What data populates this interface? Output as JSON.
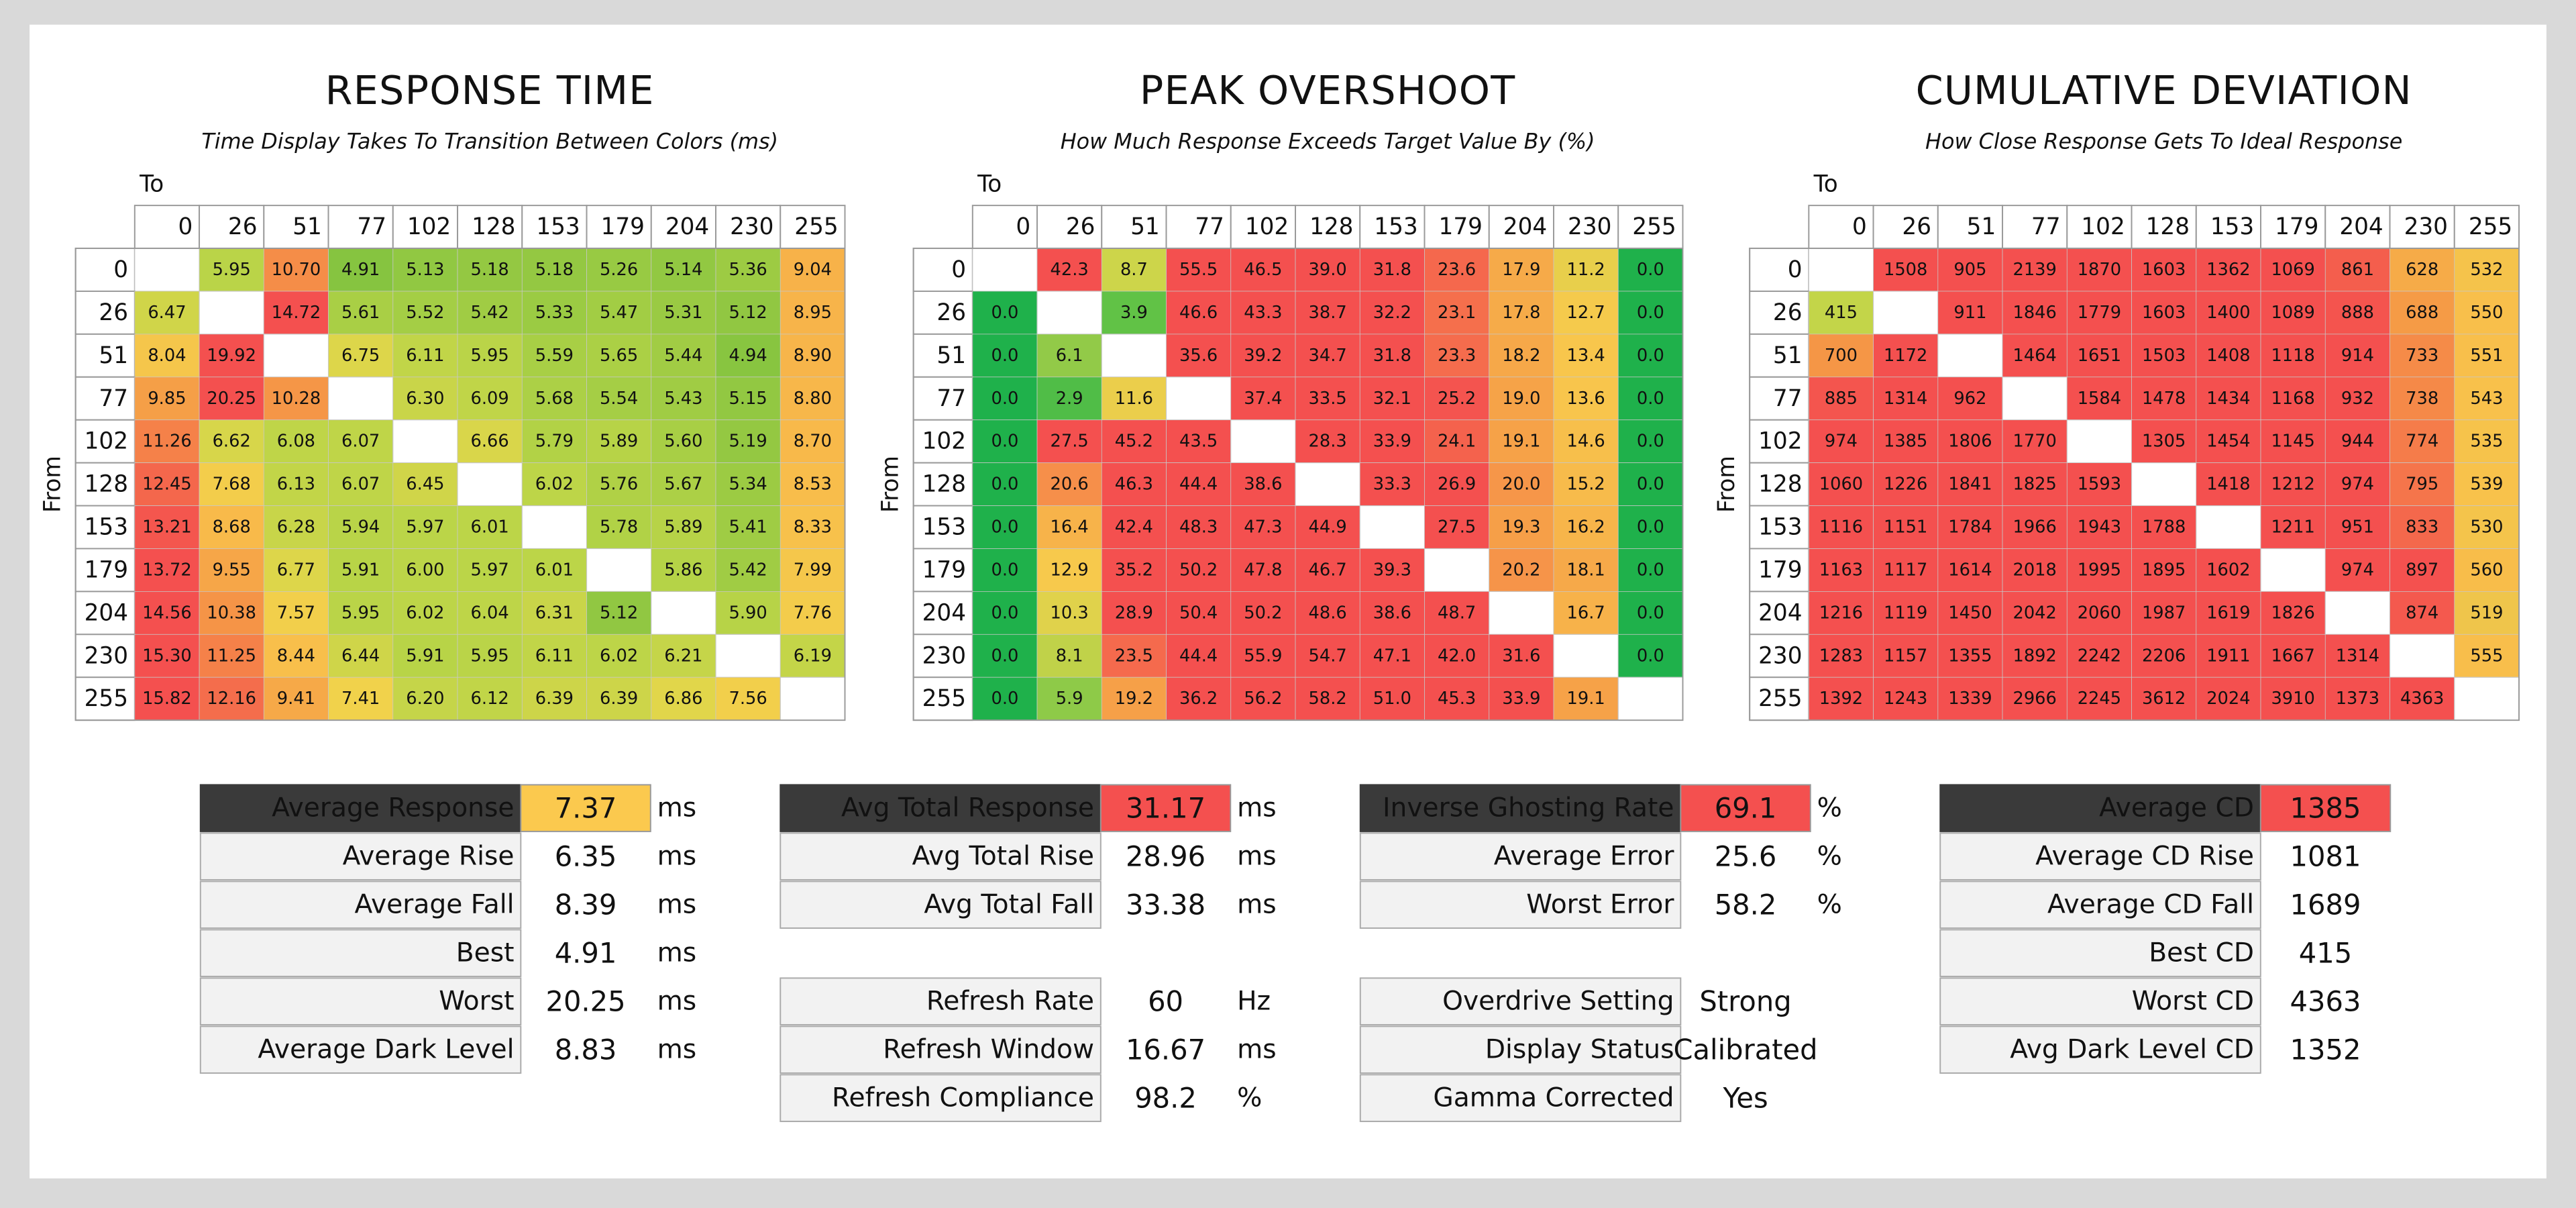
{
  "tables": [
    {
      "title": "RESPONSE TIME",
      "subtitle": "Time Display Takes To Transition Between Colors (ms)",
      "to_label": "To",
      "from_label": "From",
      "levels": [
        "0",
        "26",
        "51",
        "77",
        "102",
        "128",
        "153",
        "179",
        "204",
        "230",
        "255"
      ],
      "rows": [
        [
          null,
          "5.95",
          "10.70",
          "4.91",
          "5.13",
          "5.18",
          "5.18",
          "5.26",
          "5.14",
          "5.36",
          "9.04"
        ],
        [
          "6.47",
          null,
          "14.72",
          "5.61",
          "5.52",
          "5.42",
          "5.33",
          "5.47",
          "5.31",
          "5.12",
          "8.95"
        ],
        [
          "8.04",
          "19.92",
          null,
          "6.75",
          "6.11",
          "5.95",
          "5.59",
          "5.65",
          "5.44",
          "4.94",
          "8.90"
        ],
        [
          "9.85",
          "20.25",
          "10.28",
          null,
          "6.30",
          "6.09",
          "5.68",
          "5.54",
          "5.43",
          "5.15",
          "8.80"
        ],
        [
          "11.26",
          "6.62",
          "6.08",
          "6.07",
          null,
          "6.66",
          "5.79",
          "5.89",
          "5.60",
          "5.19",
          "8.70"
        ],
        [
          "12.45",
          "7.68",
          "6.13",
          "6.07",
          "6.45",
          null,
          "6.02",
          "5.76",
          "5.67",
          "5.34",
          "8.53"
        ],
        [
          "13.21",
          "8.68",
          "6.28",
          "5.94",
          "5.97",
          "6.01",
          null,
          "5.78",
          "5.89",
          "5.41",
          "8.33"
        ],
        [
          "13.72",
          "9.55",
          "6.77",
          "5.91",
          "6.00",
          "5.97",
          "6.01",
          null,
          "5.86",
          "5.42",
          "7.99"
        ],
        [
          "14.56",
          "10.38",
          "7.57",
          "5.95",
          "6.02",
          "6.04",
          "6.31",
          "5.12",
          null,
          "5.90",
          "7.76"
        ],
        [
          "15.30",
          "11.25",
          "8.44",
          "6.44",
          "5.91",
          "5.95",
          "6.11",
          "6.02",
          "6.21",
          null,
          "6.19"
        ],
        [
          "15.82",
          "12.16",
          "9.41",
          "7.41",
          "6.20",
          "6.12",
          "6.39",
          "6.39",
          "6.86",
          "7.56",
          null
        ]
      ]
    },
    {
      "title": "PEAK OVERSHOOT",
      "subtitle": "How Much Response Exceeds Target Value By (%)",
      "to_label": "To",
      "from_label": "From",
      "levels": [
        "0",
        "26",
        "51",
        "77",
        "102",
        "128",
        "153",
        "179",
        "204",
        "230",
        "255"
      ],
      "rows": [
        [
          null,
          "42.3",
          "8.7",
          "55.5",
          "46.5",
          "39.0",
          "31.8",
          "23.6",
          "17.9",
          "11.2",
          "0.0"
        ],
        [
          "0.0",
          null,
          "3.9",
          "46.6",
          "43.3",
          "38.7",
          "32.2",
          "23.1",
          "17.8",
          "12.7",
          "0.0"
        ],
        [
          "0.0",
          "6.1",
          null,
          "35.6",
          "39.2",
          "34.7",
          "31.8",
          "23.3",
          "18.2",
          "13.4",
          "0.0"
        ],
        [
          "0.0",
          "2.9",
          "11.6",
          null,
          "37.4",
          "33.5",
          "32.1",
          "25.2",
          "19.0",
          "13.6",
          "0.0"
        ],
        [
          "0.0",
          "27.5",
          "45.2",
          "43.5",
          null,
          "28.3",
          "33.9",
          "24.1",
          "19.1",
          "14.6",
          "0.0"
        ],
        [
          "0.0",
          "20.6",
          "46.3",
          "44.4",
          "38.6",
          null,
          "33.3",
          "26.9",
          "20.0",
          "15.2",
          "0.0"
        ],
        [
          "0.0",
          "16.4",
          "42.4",
          "48.3",
          "47.3",
          "44.9",
          null,
          "27.5",
          "19.3",
          "16.2",
          "0.0"
        ],
        [
          "0.0",
          "12.9",
          "35.2",
          "50.2",
          "47.8",
          "46.7",
          "39.3",
          null,
          "20.2",
          "18.1",
          "0.0"
        ],
        [
          "0.0",
          "10.3",
          "28.9",
          "50.4",
          "50.2",
          "48.6",
          "38.6",
          "48.7",
          null,
          "16.7",
          "0.0"
        ],
        [
          "0.0",
          "8.1",
          "23.5",
          "44.4",
          "55.9",
          "54.7",
          "47.1",
          "42.0",
          "31.6",
          null,
          "0.0"
        ],
        [
          "0.0",
          "5.9",
          "19.2",
          "36.2",
          "56.2",
          "58.2",
          "51.0",
          "45.3",
          "33.9",
          "19.1",
          null
        ]
      ]
    },
    {
      "title": "CUMULATIVE DEVIATION",
      "subtitle": "How Close Response Gets To Ideal Response",
      "to_label": "To",
      "from_label": "From",
      "levels": [
        "0",
        "26",
        "51",
        "77",
        "102",
        "128",
        "153",
        "179",
        "204",
        "230",
        "255"
      ],
      "rows": [
        [
          null,
          "1508",
          "905",
          "2139",
          "1870",
          "1603",
          "1362",
          "1069",
          "861",
          "628",
          "532"
        ],
        [
          "415",
          null,
          "911",
          "1846",
          "1779",
          "1603",
          "1400",
          "1089",
          "888",
          "688",
          "550"
        ],
        [
          "700",
          "1172",
          null,
          "1464",
          "1651",
          "1503",
          "1408",
          "1118",
          "914",
          "733",
          "551"
        ],
        [
          "885",
          "1314",
          "962",
          null,
          "1584",
          "1478",
          "1434",
          "1168",
          "932",
          "738",
          "543"
        ],
        [
          "974",
          "1385",
          "1806",
          "1770",
          null,
          "1305",
          "1454",
          "1145",
          "944",
          "774",
          "535"
        ],
        [
          "1060",
          "1226",
          "1841",
          "1825",
          "1593",
          null,
          "1418",
          "1212",
          "974",
          "795",
          "539"
        ],
        [
          "1116",
          "1151",
          "1784",
          "1966",
          "1943",
          "1788",
          null,
          "1211",
          "951",
          "833",
          "530"
        ],
        [
          "1163",
          "1117",
          "1614",
          "2018",
          "1995",
          "1895",
          "1602",
          null,
          "974",
          "897",
          "560"
        ],
        [
          "1216",
          "1119",
          "1450",
          "2042",
          "2060",
          "1987",
          "1619",
          "1826",
          null,
          "874",
          "519"
        ],
        [
          "1283",
          "1157",
          "1355",
          "1892",
          "2242",
          "2206",
          "1911",
          "1667",
          "1314",
          null,
          "555"
        ],
        [
          "1392",
          "1243",
          "1339",
          "2966",
          "2245",
          "3612",
          "2024",
          "3910",
          "1373",
          "4363",
          null
        ]
      ]
    }
  ],
  "panels": [
    {
      "highlight_color": "#fbc94e",
      "groups": [
        [
          {
            "label": "Average Response",
            "value": "7.37",
            "unit": "ms"
          },
          {
            "label": "Average Rise",
            "value": "6.35",
            "unit": "ms"
          },
          {
            "label": "Average Fall",
            "value": "8.39",
            "unit": "ms"
          },
          {
            "label": "Best",
            "value": "4.91",
            "unit": "ms"
          },
          {
            "label": "Worst",
            "value": "20.25",
            "unit": "ms"
          },
          {
            "label": "Average Dark Level",
            "value": "8.83",
            "unit": "ms"
          }
        ]
      ]
    },
    {
      "highlight_color": "#f4504f",
      "groups": [
        [
          {
            "label": "Avg Total Response",
            "value": "31.17",
            "unit": "ms"
          },
          {
            "label": "Avg Total Rise",
            "value": "28.96",
            "unit": "ms"
          },
          {
            "label": "Avg Total Fall",
            "value": "33.38",
            "unit": "ms"
          }
        ],
        [
          {
            "label": "Refresh Rate",
            "value": "60",
            "unit": "Hz"
          },
          {
            "label": "Refresh Window",
            "value": "16.67",
            "unit": "ms"
          },
          {
            "label": "Refresh Compliance",
            "value": "98.2",
            "unit": "%"
          }
        ]
      ]
    },
    {
      "highlight_color": "#f4504f",
      "groups": [
        [
          {
            "label": "Inverse Ghosting Rate",
            "value": "69.1",
            "unit": "%"
          },
          {
            "label": "Average Error",
            "value": "25.6",
            "unit": "%"
          },
          {
            "label": "Worst Error",
            "value": "58.2",
            "unit": "%"
          }
        ],
        [
          {
            "label": "Overdrive Setting",
            "value": "Strong"
          },
          {
            "label": "Display Status",
            "value": "Calibrated"
          },
          {
            "label": "Gamma Corrected",
            "value": "Yes"
          }
        ]
      ]
    },
    {
      "highlight_color": "#f4504f",
      "groups": [
        [
          {
            "label": "Average CD",
            "value": "1385"
          },
          {
            "label": "Average CD Rise",
            "value": "1081"
          },
          {
            "label": "Average CD Fall",
            "value": "1689"
          },
          {
            "label": "Best CD",
            "value": "415"
          },
          {
            "label": "Worst CD",
            "value": "4363"
          },
          {
            "label": "Avg Dark Level CD",
            "value": "1352"
          }
        ]
      ]
    }
  ]
}
